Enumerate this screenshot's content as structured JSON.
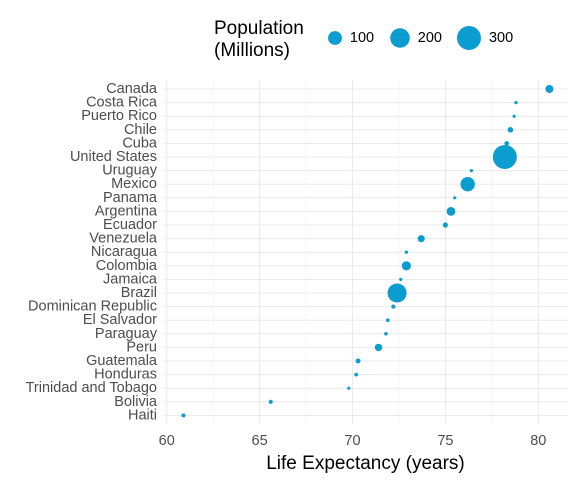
{
  "chart_data": {
    "type": "scatter",
    "xlabel": "Life Expectancy (years)",
    "ylabel": "",
    "xlim": [
      59.8,
      81.6
    ],
    "x_ticks": [
      60,
      65,
      70,
      75,
      80
    ],
    "grid": true,
    "legend": {
      "title_lines": [
        "Population",
        "(Millions)"
      ],
      "placement": "top",
      "sizes": [
        100,
        200,
        300
      ],
      "labels": [
        "100",
        "200",
        "300"
      ]
    },
    "point_color": "#0B9CD0",
    "points": [
      {
        "country": "Canada",
        "life_expectancy": 80.6,
        "population": 33.4
      },
      {
        "country": "Costa Rica",
        "life_expectancy": 78.8,
        "population": 4.1
      },
      {
        "country": "Puerto Rico",
        "life_expectancy": 78.7,
        "population": 3.9
      },
      {
        "country": "Chile",
        "life_expectancy": 78.5,
        "population": 16.3
      },
      {
        "country": "Cuba",
        "life_expectancy": 78.3,
        "population": 11.4
      },
      {
        "country": "United States",
        "life_expectancy": 78.2,
        "population": 301.1
      },
      {
        "country": "Uruguay",
        "life_expectancy": 76.4,
        "population": 3.4
      },
      {
        "country": "Mexico",
        "life_expectancy": 76.2,
        "population": 108.7
      },
      {
        "country": "Panama",
        "life_expectancy": 75.5,
        "population": 3.2
      },
      {
        "country": "Argentina",
        "life_expectancy": 75.3,
        "population": 40.3
      },
      {
        "country": "Ecuador",
        "life_expectancy": 75.0,
        "population": 13.8
      },
      {
        "country": "Venezuela",
        "life_expectancy": 73.7,
        "population": 26.1
      },
      {
        "country": "Nicaragua",
        "life_expectancy": 72.9,
        "population": 5.7
      },
      {
        "country": "Colombia",
        "life_expectancy": 72.9,
        "population": 44.2
      },
      {
        "country": "Jamaica",
        "life_expectancy": 72.6,
        "population": 2.8
      },
      {
        "country": "Brazil",
        "life_expectancy": 72.4,
        "population": 190.0
      },
      {
        "country": "Dominican Republic",
        "life_expectancy": 72.2,
        "population": 9.3
      },
      {
        "country": "El Salvador",
        "life_expectancy": 71.9,
        "population": 6.9
      },
      {
        "country": "Paraguay",
        "life_expectancy": 71.8,
        "population": 6.7
      },
      {
        "country": "Peru",
        "life_expectancy": 71.4,
        "population": 28.7
      },
      {
        "country": "Guatemala",
        "life_expectancy": 70.3,
        "population": 12.6
      },
      {
        "country": "Honduras",
        "life_expectancy": 70.2,
        "population": 7.5
      },
      {
        "country": "Trinidad and Tobago",
        "life_expectancy": 69.8,
        "population": 1.1
      },
      {
        "country": "Bolivia",
        "life_expectancy": 65.6,
        "population": 9.1
      },
      {
        "country": "Haiti",
        "life_expectancy": 60.9,
        "population": 8.5
      }
    ]
  }
}
